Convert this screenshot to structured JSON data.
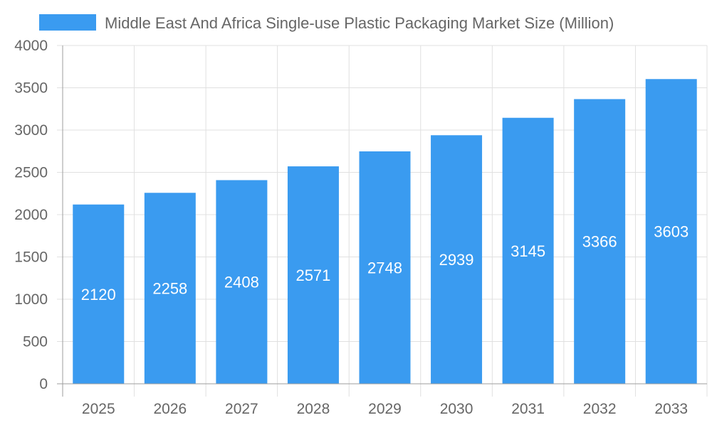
{
  "chart_data": {
    "type": "bar",
    "title": "",
    "xlabel": "",
    "ylabel": "",
    "categories": [
      "2025",
      "2026",
      "2027",
      "2028",
      "2029",
      "2030",
      "2031",
      "2032",
      "2033"
    ],
    "series": [
      {
        "name": "Middle East And Africa Single-use Plastic Packaging Market Size (Million)",
        "values": [
          2120,
          2258,
          2408,
          2571,
          2748,
          2939,
          3145,
          3366,
          3603
        ]
      }
    ],
    "ylim": [
      0,
      4000
    ],
    "yticks": [
      0,
      500,
      1000,
      1500,
      2000,
      2500,
      3000,
      3500,
      4000
    ],
    "grid": true,
    "legend_position": "top",
    "data_labels": "inside-center",
    "colors": {
      "bar": "#3a9bf0",
      "grid": "#e0e0e0",
      "axis": "#9e9e9e",
      "text": "#666666",
      "label": "#ffffff"
    }
  }
}
